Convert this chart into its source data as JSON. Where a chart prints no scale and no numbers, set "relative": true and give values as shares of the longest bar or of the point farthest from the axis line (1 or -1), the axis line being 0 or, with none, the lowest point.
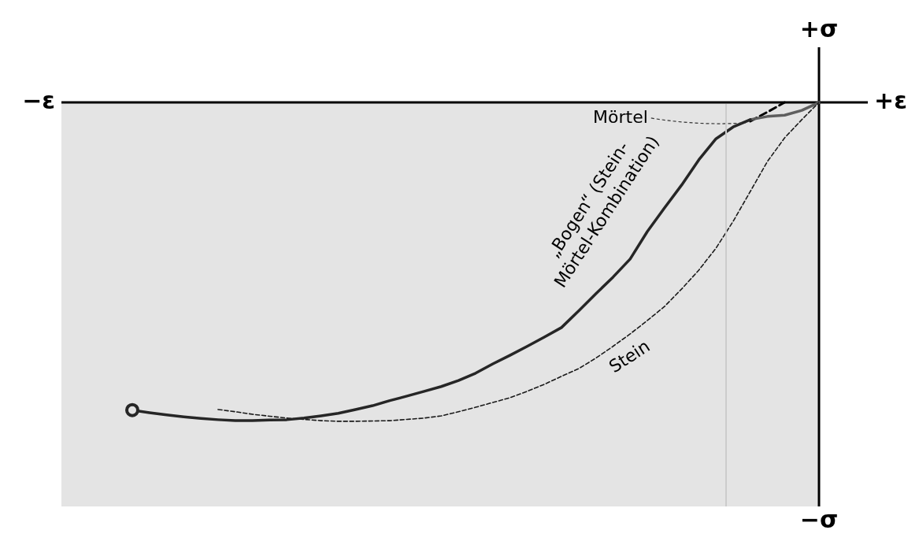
{
  "chart_data": {
    "type": "line",
    "relative": true,
    "xlabel": "+ε",
    "ylabel": "+σ",
    "annotations": [
      "−ε",
      "−σ"
    ],
    "categories": [
      null,
      null,
      null,
      null,
      null,
      null,
      null,
      null,
      null,
      null,
      null,
      null,
      null,
      null,
      null,
      null,
      null,
      null,
      null,
      null,
      null,
      null,
      null,
      null,
      null,
      null,
      null,
      null,
      null,
      null,
      null,
      null,
      null,
      null,
      null,
      null,
      null,
      null,
      null,
      null,
      null
    ],
    "series": [
      {
        "name": "„Bogen“ (Stein-\nMörtel-Kombination)",
        "color": "#262626",
        "values": [
          -0.965,
          -0.973,
          -0.98,
          -0.986,
          -0.991,
          -0.995,
          -0.998,
          -0.998,
          -0.996,
          -0.995,
          -0.99,
          -0.983,
          -0.975,
          -0.963,
          -0.951,
          -0.935,
          -0.921,
          -0.906,
          -0.891,
          -0.872,
          -0.849,
          -0.82,
          -0.793,
          -0.765,
          -0.736,
          -0.706,
          -0.654,
          -0.6,
          -0.548,
          -0.491,
          -0.405,
          -0.331,
          -0.259,
          -0.18,
          -0.114,
          -0.077,
          -0.054,
          null,
          null,
          null,
          null
        ]
      },
      {
        "name": "Stein",
        "color": "#1a1a1a",
        "line_style": "dashed",
        "values": [
          null,
          null,
          null,
          null,
          null,
          -0.963,
          -0.97,
          -0.978,
          -0.984,
          -0.99,
          -0.994,
          -0.998,
          -1,
          -1,
          -0.999,
          -0.998,
          -0.994,
          -0.99,
          -0.983,
          -0.97,
          -0.956,
          -0.941,
          -0.926,
          -0.906,
          -0.884,
          -0.859,
          -0.835,
          -0.802,
          -0.765,
          -0.726,
          -0.684,
          -0.64,
          -0.585,
          -0.526,
          -0.457,
          -0.373,
          -0.279,
          -0.185,
          -0.111,
          -0.054,
          0
        ]
      },
      {
        "name": "Mörtel",
        "color": "#5e5e5e",
        "values": [
          null,
          null,
          null,
          null,
          null,
          null,
          null,
          null,
          null,
          null,
          null,
          null,
          null,
          null,
          null,
          null,
          null,
          null,
          null,
          null,
          null,
          null,
          null,
          null,
          null,
          null,
          null,
          null,
          null,
          null,
          null,
          null,
          null,
          null,
          null,
          null,
          -0.054,
          -0.044,
          -0.04,
          -0.025,
          0
        ]
      },
      {
        "color": "#000000",
        "line_style": "dashed",
        "values": [
          null,
          null,
          null,
          null,
          null,
          null,
          null,
          null,
          null,
          null,
          null,
          null,
          null,
          null,
          null,
          null,
          null,
          null,
          null,
          null,
          null,
          null,
          null,
          null,
          null,
          null,
          null,
          null,
          null,
          null,
          null,
          null,
          null,
          null,
          null,
          null,
          -0.059,
          -0.03,
          0,
          null,
          null
        ]
      }
    ]
  }
}
